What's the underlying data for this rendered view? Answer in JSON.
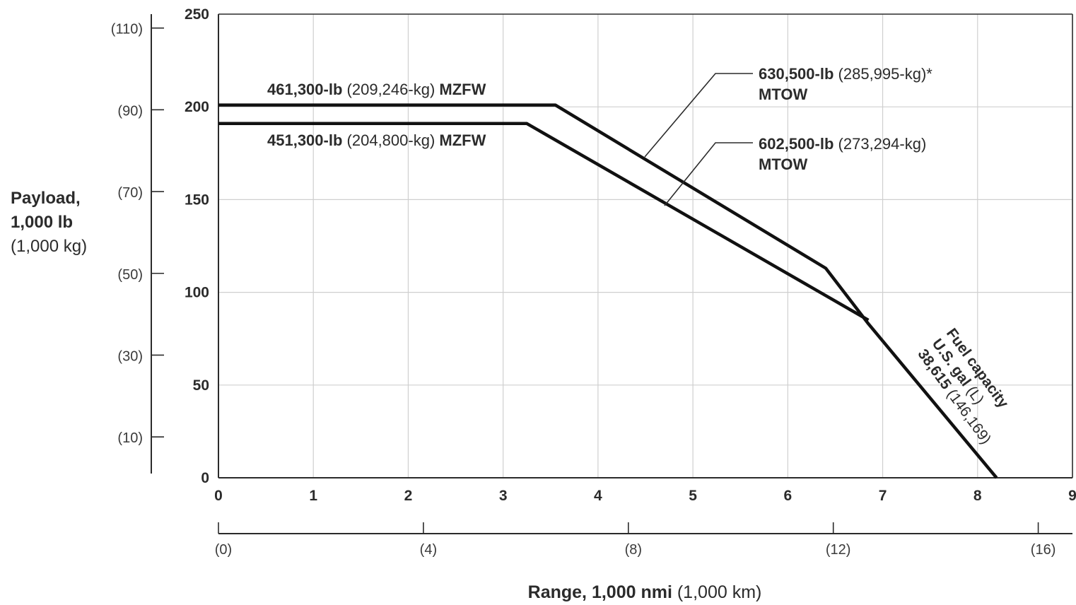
{
  "chart_data": {
    "type": "line",
    "ylabel": {
      "line1": "Payload,",
      "line2": "1,000 lb",
      "line3": "(1,000 kg)"
    },
    "xlabel": {
      "bold": "Range, 1,000 nmi",
      "normal": "(1,000 km)"
    },
    "xlim": [
      0,
      9
    ],
    "ylim": [
      0,
      250
    ],
    "grid": true,
    "x_ticks": [
      0,
      1,
      2,
      3,
      4,
      5,
      6,
      7,
      8,
      9
    ],
    "y_ticks": [
      0,
      50,
      100,
      150,
      200,
      250
    ],
    "secondary_y_ticks": [
      "(10)",
      "(30)",
      "(50)",
      "(70)",
      "(90)",
      "(110)"
    ],
    "secondary_y_values_kg_thousands": [
      10,
      30,
      50,
      70,
      90,
      110
    ],
    "secondary_x_ticks": [
      "(0)",
      "(4)",
      "(8)",
      "(12)",
      "(16)"
    ],
    "secondary_x_values_km_thousands": [
      0,
      4,
      8,
      12,
      16
    ],
    "series": [
      {
        "x": [
          0,
          3.55,
          6.4,
          6.85,
          8.2
        ],
        "y": [
          201,
          201,
          113,
          83,
          0
        ]
      },
      {
        "x": [
          0,
          3.25,
          6.85
        ],
        "y": [
          191,
          191,
          85
        ]
      }
    ],
    "annotations": {
      "mzfw_461": {
        "bold": "461,300-lb",
        "normal": "(209,246-kg)",
        "bold2": "MZFW"
      },
      "mzfw_451": {
        "bold": "451,300-lb",
        "normal": "(204,800-kg)",
        "bold2": "MZFW"
      },
      "mtow_630": {
        "bold": "630,500-lb",
        "normal": "(285,995-kg)*",
        "line2": "MTOW"
      },
      "mtow_602": {
        "bold": "602,500-lb",
        "normal": "(273,294-kg)",
        "line2": "MTOW"
      },
      "fuel": {
        "line1": "Fuel capacity",
        "line2_bold": "U.S. gal",
        "line2_normal": "(L)",
        "line3_bold": "38,615",
        "line3_normal": "(146,169)"
      }
    }
  }
}
